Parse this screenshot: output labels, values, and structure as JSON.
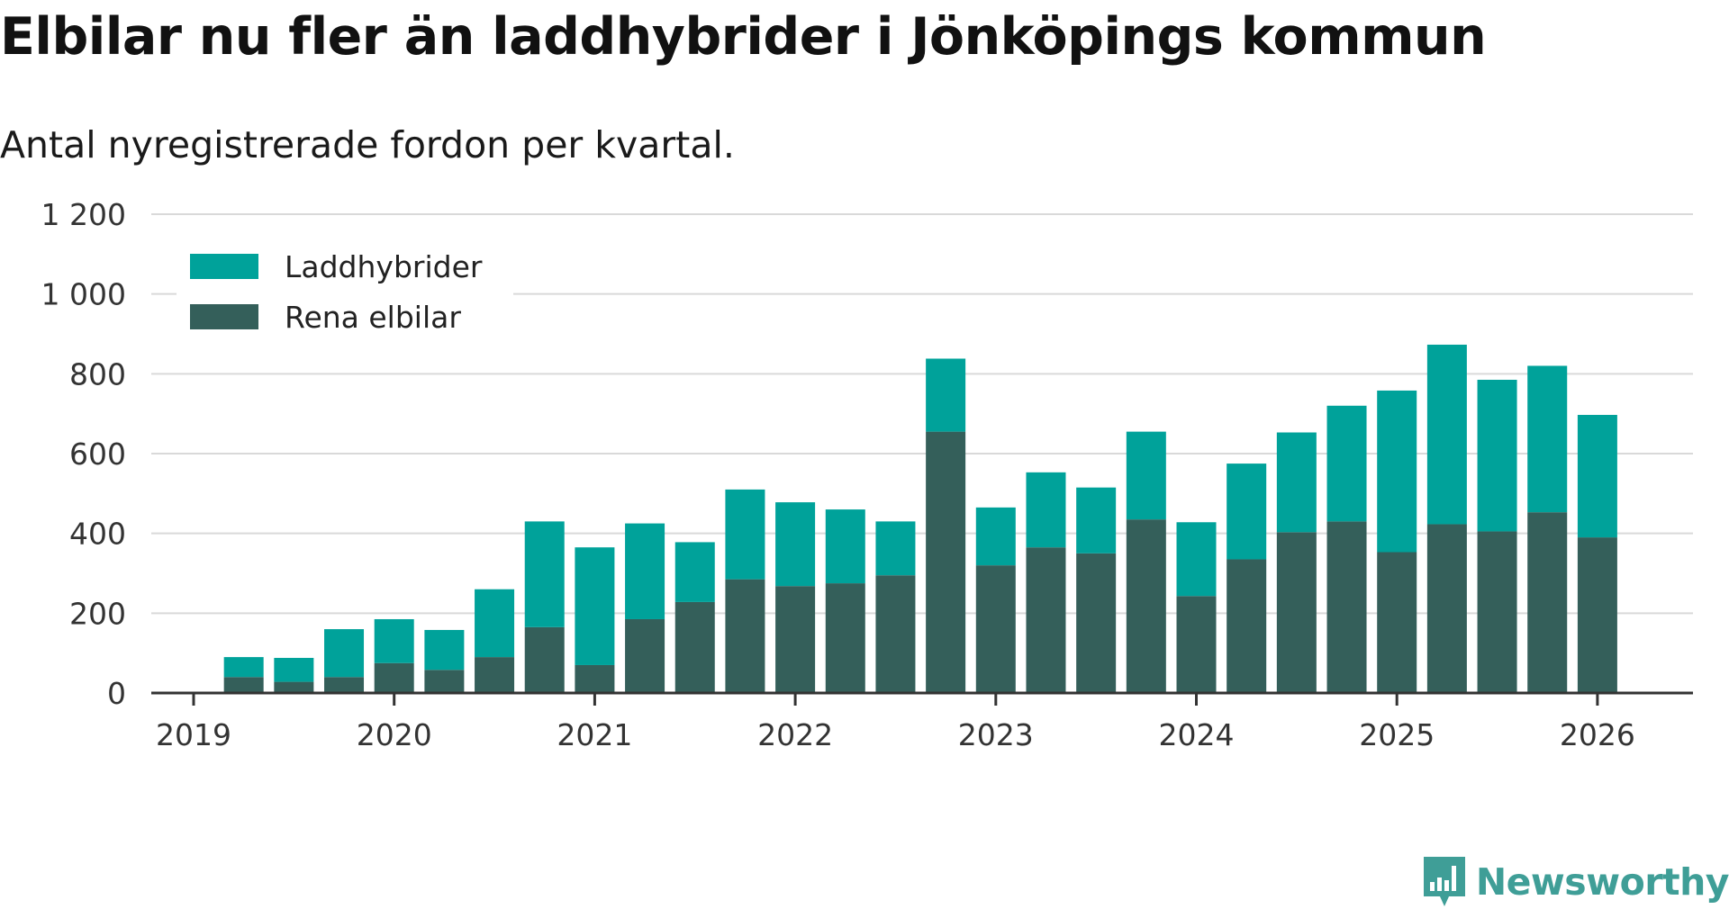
{
  "title": "Elbilar nu fler än laddhybrider i Jönköpings kommun",
  "subtitle": "Antal nyregistrerade fordon per kvartal.",
  "brand": "Newsworthy",
  "colors": {
    "laddhybrider": "#00a29a",
    "rena_elbilar": "#345f5a",
    "grid": "#d9d9d9",
    "axis": "#333333",
    "brand": "#3f9e97"
  },
  "chart_data": {
    "type": "bar",
    "stacked": true,
    "categories": [
      "2019 Q2",
      "2019 Q3",
      "2019 Q4",
      "2020 Q1",
      "2020 Q2",
      "2020 Q3",
      "2020 Q4",
      "2021 Q1",
      "2021 Q2",
      "2021 Q3",
      "2021 Q4",
      "2022 Q1",
      "2022 Q2",
      "2022 Q3",
      "2022 Q4",
      "2023 Q1",
      "2023 Q2",
      "2023 Q3",
      "2023 Q4",
      "2024 Q1",
      "2024 Q2",
      "2024 Q3",
      "2024 Q4",
      "2025 Q1",
      "2025 Q2",
      "2025 Q3",
      "2025 Q4",
      "2026 Q1"
    ],
    "series": [
      {
        "name": "Rena elbilar",
        "values": [
          40,
          28,
          40,
          75,
          58,
          90,
          165,
          70,
          185,
          228,
          285,
          268,
          275,
          295,
          655,
          320,
          365,
          350,
          435,
          243,
          335,
          403,
          430,
          353,
          423,
          405,
          453,
          390
        ]
      },
      {
        "name": "Laddhybrider",
        "values": [
          50,
          60,
          120,
          110,
          100,
          170,
          265,
          295,
          240,
          150,
          225,
          210,
          185,
          135,
          183,
          145,
          188,
          165,
          220,
          185,
          240,
          250,
          290,
          405,
          450,
          380,
          367,
          307
        ]
      }
    ],
    "legend": [
      "Laddhybrider",
      "Rena elbilar"
    ],
    "legend_position": "top-left",
    "x_ticks": [
      "2019",
      "2020",
      "2021",
      "2022",
      "2023",
      "2024",
      "2025",
      "2026"
    ],
    "y_ticks": [
      "0",
      "200",
      "400",
      "600",
      "800",
      "1 000",
      "1 200"
    ],
    "ylim": [
      0,
      1200
    ],
    "xlabel": "",
    "ylabel": "",
    "grid": true
  }
}
